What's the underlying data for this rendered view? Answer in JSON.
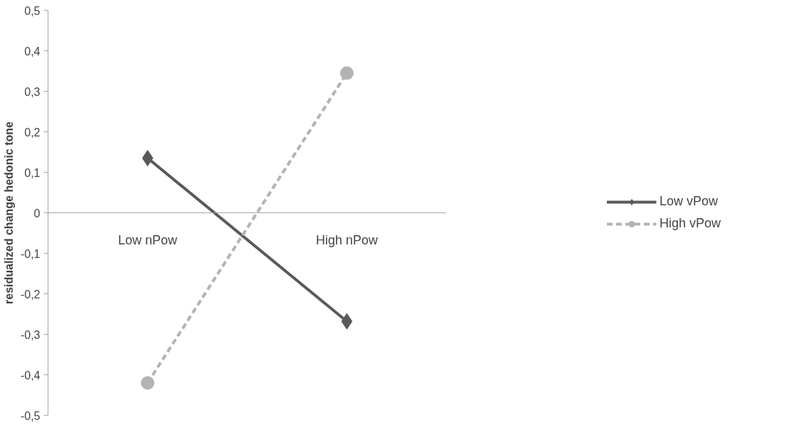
{
  "chart_data": {
    "type": "line",
    "ylabel": "residualized change hedonic tone",
    "categories": [
      "Low nPow",
      "High nPow"
    ],
    "series": [
      {
        "name": "Low vPow",
        "color": "#595959",
        "values": [
          0.135,
          -0.268
        ],
        "marker": "diamond",
        "line_style": "solid"
      },
      {
        "name": "High vPow",
        "color": "#b3b3b3",
        "values": [
          -0.42,
          0.345
        ],
        "marker": "circle",
        "line_style": "dashed"
      }
    ],
    "ylim": [
      -0.5,
      0.5
    ],
    "yticks": [
      {
        "value": -0.5,
        "label": "-0,5"
      },
      {
        "value": -0.4,
        "label": "-0,4"
      },
      {
        "value": -0.3,
        "label": "-0,3"
      },
      {
        "value": -0.2,
        "label": "-0,2"
      },
      {
        "value": -0.1,
        "label": "-0,1"
      },
      0,
      {
        "value": 0.1,
        "label": "0,1"
      },
      {
        "value": 0.2,
        "label": "0,2"
      },
      {
        "value": 0.3,
        "label": "0,3"
      },
      {
        "value": 0.4,
        "label": "0,4"
      },
      {
        "value": 0.5,
        "label": "0,5"
      }
    ],
    "grid": false,
    "legend": "right"
  }
}
